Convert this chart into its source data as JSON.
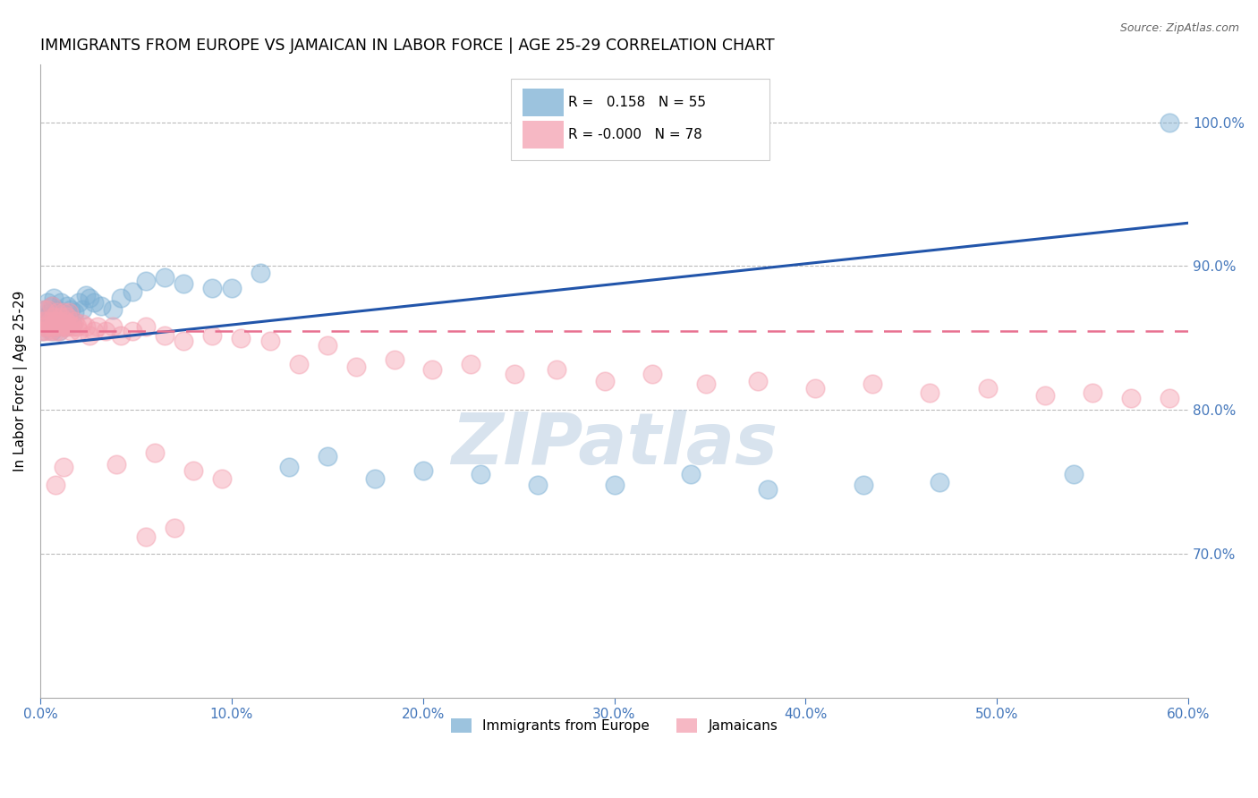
{
  "title": "IMMIGRANTS FROM EUROPE VS JAMAICAN IN LABOR FORCE | AGE 25-29 CORRELATION CHART",
  "source": "Source: ZipAtlas.com",
  "ylabel": "In Labor Force | Age 25-29",
  "xlim": [
    0.0,
    0.6
  ],
  "ylim": [
    0.6,
    1.04
  ],
  "xticks": [
    0.0,
    0.1,
    0.2,
    0.3,
    0.4,
    0.5,
    0.6
  ],
  "xticklabels": [
    "0.0%",
    "10.0%",
    "20.0%",
    "30.0%",
    "40.0%",
    "50.0%",
    "60.0%"
  ],
  "yticks_right": [
    0.7,
    0.8,
    0.9,
    1.0
  ],
  "yticklabels_right": [
    "70.0%",
    "80.0%",
    "90.0%",
    "100.0%"
  ],
  "blue_R": 0.158,
  "blue_N": 55,
  "pink_R": -0.0,
  "pink_N": 78,
  "blue_color": "#7BAFD4",
  "pink_color": "#F4A0B0",
  "blue_line_color": "#2255AA",
  "pink_line_color": "#E87090",
  "axis_color": "#4477BB",
  "watermark": "ZIPatlas",
  "legend_label_blue": "Immigrants from Europe",
  "legend_label_pink": "Jamaicans",
  "blue_x": [
    0.001,
    0.002,
    0.003,
    0.003,
    0.004,
    0.004,
    0.005,
    0.005,
    0.006,
    0.006,
    0.007,
    0.007,
    0.008,
    0.008,
    0.009,
    0.009,
    0.01,
    0.01,
    0.011,
    0.011,
    0.012,
    0.013,
    0.014,
    0.015,
    0.016,
    0.017,
    0.018,
    0.02,
    0.022,
    0.024,
    0.026,
    0.028,
    0.032,
    0.038,
    0.042,
    0.048,
    0.055,
    0.065,
    0.075,
    0.09,
    0.1,
    0.115,
    0.13,
    0.15,
    0.175,
    0.2,
    0.23,
    0.26,
    0.3,
    0.34,
    0.38,
    0.43,
    0.47,
    0.54,
    0.59
  ],
  "blue_y": [
    0.855,
    0.862,
    0.858,
    0.87,
    0.865,
    0.875,
    0.86,
    0.868,
    0.855,
    0.872,
    0.862,
    0.878,
    0.858,
    0.865,
    0.86,
    0.87,
    0.855,
    0.862,
    0.868,
    0.875,
    0.862,
    0.858,
    0.872,
    0.865,
    0.87,
    0.86,
    0.868,
    0.875,
    0.87,
    0.88,
    0.878,
    0.875,
    0.872,
    0.87,
    0.878,
    0.882,
    0.89,
    0.892,
    0.888,
    0.885,
    0.885,
    0.895,
    0.76,
    0.768,
    0.752,
    0.758,
    0.755,
    0.748,
    0.748,
    0.755,
    0.745,
    0.748,
    0.75,
    0.755,
    1.0
  ],
  "pink_x": [
    0.001,
    0.001,
    0.002,
    0.002,
    0.003,
    0.003,
    0.004,
    0.004,
    0.005,
    0.005,
    0.006,
    0.006,
    0.007,
    0.007,
    0.008,
    0.008,
    0.009,
    0.009,
    0.01,
    0.01,
    0.011,
    0.011,
    0.012,
    0.012,
    0.013,
    0.013,
    0.014,
    0.014,
    0.015,
    0.015,
    0.016,
    0.017,
    0.018,
    0.019,
    0.02,
    0.022,
    0.024,
    0.026,
    0.028,
    0.03,
    0.034,
    0.038,
    0.042,
    0.048,
    0.055,
    0.065,
    0.075,
    0.09,
    0.105,
    0.12,
    0.135,
    0.15,
    0.165,
    0.185,
    0.205,
    0.225,
    0.248,
    0.27,
    0.295,
    0.32,
    0.348,
    0.375,
    0.405,
    0.435,
    0.465,
    0.495,
    0.525,
    0.55,
    0.57,
    0.59,
    0.012,
    0.008,
    0.095,
    0.08,
    0.04,
    0.06,
    0.07,
    0.055
  ],
  "pink_y": [
    0.855,
    0.862,
    0.858,
    0.87,
    0.855,
    0.862,
    0.858,
    0.87,
    0.855,
    0.862,
    0.858,
    0.872,
    0.86,
    0.865,
    0.855,
    0.862,
    0.858,
    0.868,
    0.855,
    0.862,
    0.858,
    0.865,
    0.86,
    0.868,
    0.858,
    0.862,
    0.858,
    0.865,
    0.86,
    0.868,
    0.855,
    0.858,
    0.862,
    0.858,
    0.855,
    0.86,
    0.858,
    0.852,
    0.855,
    0.858,
    0.855,
    0.858,
    0.852,
    0.855,
    0.858,
    0.852,
    0.848,
    0.852,
    0.85,
    0.848,
    0.832,
    0.845,
    0.83,
    0.835,
    0.828,
    0.832,
    0.825,
    0.828,
    0.82,
    0.825,
    0.818,
    0.82,
    0.815,
    0.818,
    0.812,
    0.815,
    0.81,
    0.812,
    0.808,
    0.808,
    0.76,
    0.748,
    0.752,
    0.758,
    0.762,
    0.77,
    0.718,
    0.712
  ],
  "blue_line_x0": 0.0,
  "blue_line_y0": 0.845,
  "blue_line_x1": 0.6,
  "blue_line_y1": 0.93,
  "pink_line_x0": 0.0,
  "pink_line_y0": 0.855,
  "pink_line_x1": 0.6,
  "pink_line_y1": 0.855
}
